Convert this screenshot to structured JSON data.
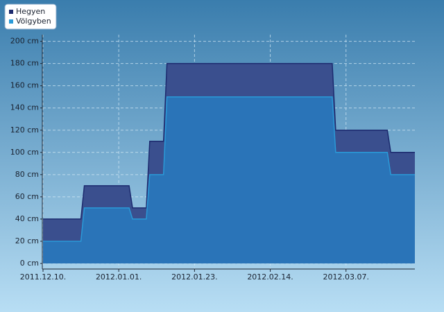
{
  "chart_data": {
    "type": "area",
    "x": [
      "2011.12.10.",
      "2011.12.21.",
      "2011.12.22.",
      "2012.01.04.",
      "2012.01.05.",
      "2012.01.09.",
      "2012.01.10.",
      "2012.01.14.",
      "2012.01.15.",
      "2012.03.03.",
      "2012.03.04.",
      "2012.03.19.",
      "2012.03.20.",
      "2012.03.27."
    ],
    "series": [
      {
        "name": "Hegyen",
        "color": "#1c2a6e",
        "fill": "#3a4f8e",
        "values": [
          40,
          40,
          70,
          70,
          50,
          50,
          110,
          110,
          180,
          180,
          120,
          120,
          100,
          100
        ]
      },
      {
        "name": "Völgyben",
        "color": "#2a9ad8",
        "fill": "#2a74b8",
        "values": [
          20,
          20,
          50,
          50,
          40,
          40,
          80,
          80,
          150,
          150,
          100,
          100,
          80,
          80
        ]
      }
    ],
    "xlim": [
      "2011.12.10.",
      "2012.03.27."
    ],
    "xticks": [
      "2011.12.10.",
      "2012.01.01.",
      "2012.01.23.",
      "2012.02.14.",
      "2012.03.07."
    ],
    "ylim": [
      -5,
      206
    ],
    "yticks": [
      {
        "value": 0,
        "label": "0 cm"
      },
      {
        "value": 20,
        "label": "20 cm"
      },
      {
        "value": 40,
        "label": "40 cm"
      },
      {
        "value": 60,
        "label": "60 cm"
      },
      {
        "value": 80,
        "label": "80 cm"
      },
      {
        "value": 100,
        "label": "100 cm"
      },
      {
        "value": 120,
        "label": "120 cm"
      },
      {
        "value": 140,
        "label": "140 cm"
      },
      {
        "value": 160,
        "label": "160 cm"
      },
      {
        "value": 180,
        "label": "180 cm"
      },
      {
        "value": 200,
        "label": "200 cm"
      }
    ],
    "grid": true,
    "legend": "top-left"
  }
}
